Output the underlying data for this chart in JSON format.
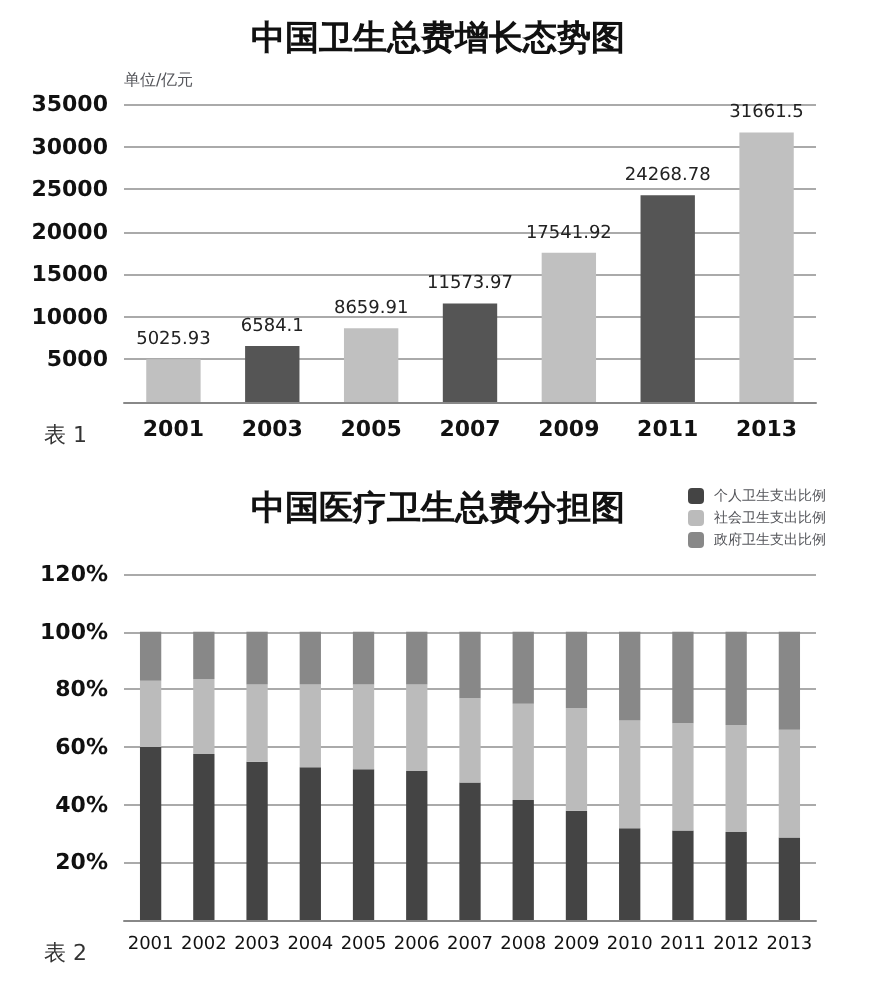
{
  "chart_data": [
    {
      "type": "bar",
      "title": "中国卫生总费增长态势图",
      "ylabel": "单位/亿元",
      "annotations": [
        "表 1"
      ],
      "categories": [
        "2001",
        "2003",
        "2005",
        "2007",
        "2009",
        "2011",
        "2013"
      ],
      "values": [
        5025.93,
        6584.1,
        8659.91,
        11573.97,
        17541.92,
        24268.78,
        31661.5
      ],
      "colors": [
        "#c0c0c0",
        "#555555",
        "#c0c0c0",
        "#555555",
        "#c0c0c0",
        "#555555",
        "#c0c0c0"
      ],
      "data_labels": true,
      "ylim": [
        0,
        35000
      ],
      "yticks": [
        5000,
        10000,
        15000,
        20000,
        25000,
        30000,
        35000
      ],
      "grid": "y"
    },
    {
      "type": "bar",
      "title": "中国医疗卫生总费分担图",
      "annotations": [
        "表 2"
      ],
      "stacked": true,
      "legend": "top right",
      "categories": [
        "2001",
        "2002",
        "2003",
        "2004",
        "2005",
        "2006",
        "2007",
        "2008",
        "2009",
        "2010",
        "2011",
        "2012",
        "2013"
      ],
      "series": [
        {
          "name": "个人卫生支出比例",
          "color": "#444444",
          "values": [
            60,
            57.6,
            54.9,
            53,
            52.3,
            51.7,
            47.7,
            41.6,
            37.9,
            31.8,
            31,
            30.5,
            28.6
          ]
        },
        {
          "name": "社会卫生支出比例",
          "color": "#bbbbbb",
          "values": [
            23,
            26,
            26.8,
            28.7,
            29.4,
            30,
            29.2,
            33.4,
            35.6,
            37.4,
            37.2,
            37.1,
            37.4
          ]
        },
        {
          "name": "政府卫生支出比例",
          "color": "#888888",
          "values": [
            17,
            16.4,
            18.3,
            18.3,
            18.3,
            18.3,
            23.1,
            25,
            26.5,
            30.8,
            31.8,
            32.4,
            34
          ]
        }
      ],
      "ylim": [
        0,
        120
      ],
      "yticks": [
        {
          "value": 20,
          "label": "20%"
        },
        {
          "value": 40,
          "label": "40%"
        },
        {
          "value": 60,
          "label": "60%"
        },
        {
          "value": 80,
          "label": "80%"
        },
        {
          "value": 100,
          "label": "100%"
        },
        {
          "value": 120,
          "label": "120%"
        }
      ],
      "grid": "y"
    }
  ]
}
